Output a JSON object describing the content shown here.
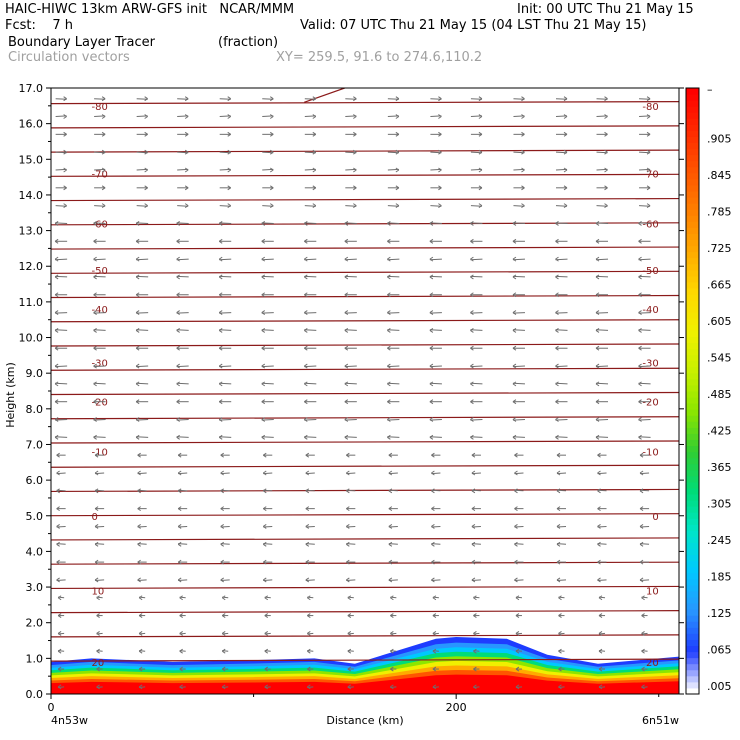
{
  "header": {
    "line1_left": "HAIC-HIWC 13km ARW-GFS init   NCAR/MMM",
    "line1_right": "Init: 00 UTC Thu 21 May 15",
    "line2_left": "Fcst:    7 h",
    "line2_right": "Valid: 07 UTC Thu 21 May 15 (04 LST Thu 21 May 15)",
    "line3_field": "Boundary Layer Tracer",
    "line3_units": "(fraction)",
    "line4_field": "Circulation vectors",
    "line4_xy": "XY= 259.5, 91.6 to 274.6,110.2"
  },
  "chart_data": {
    "type": "heatmap",
    "xlabel": "Distance (km)",
    "ylabel": "Height (km)",
    "xlim": [
      0,
      310
    ],
    "ylim": [
      0,
      17
    ],
    "x_ticks": [
      {
        "value": 0,
        "label": "0"
      },
      {
        "value": 200,
        "label": "200"
      }
    ],
    "y_ticks": [
      "0.0",
      "1.0",
      "2.0",
      "3.0",
      "4.0",
      "5.0",
      "6.0",
      "7.0",
      "8.0",
      "9.0",
      "10.0",
      "11.0",
      "12.0",
      "13.0",
      "14.0",
      "15.0",
      "16.0",
      "17.0"
    ],
    "x_endpoints": {
      "left": "4n53w",
      "right": "6n51w"
    },
    "colorbar": {
      "labels": [
        ".005",
        ".065",
        ".125",
        ".185",
        ".245",
        ".305",
        ".365",
        ".425",
        ".485",
        ".545",
        ".605",
        ".665",
        ".725",
        ".785",
        ".845",
        ".905"
      ],
      "top_label": "–",
      "colors": [
        "#ffffff",
        "#1e3cff",
        "#2896ff",
        "#00c8ff",
        "#00e6c8",
        "#00dc78",
        "#32cd32",
        "#8ce600",
        "#c8f000",
        "#f0f000",
        "#ffd700",
        "#ffaa00",
        "#ff8000",
        "#ff5500",
        "#ff2a00",
        "#ff0000"
      ]
    },
    "isotherm_labels": [
      {
        "label": "-80",
        "height_km": 16.5
      },
      {
        "label": "-70",
        "height_km": 14.6
      },
      {
        "label": "-60",
        "height_km": 13.2
      },
      {
        "label": "-50",
        "height_km": 11.9
      },
      {
        "label": "-40",
        "height_km": 10.8
      },
      {
        "label": "-30",
        "height_km": 9.3
      },
      {
        "label": "-20",
        "height_km": 8.2
      },
      {
        "label": "-10",
        "height_km": 6.8
      },
      {
        "label": "0",
        "height_km": 5.0
      },
      {
        "label": "10",
        "height_km": 2.9
      },
      {
        "label": "20",
        "height_km": 0.9
      }
    ],
    "boundary_layer_top_km": [
      [
        0,
        0.9
      ],
      [
        20,
        1.0
      ],
      [
        60,
        0.9
      ],
      [
        100,
        0.95
      ],
      [
        130,
        1.0
      ],
      [
        150,
        0.85
      ],
      [
        170,
        1.2
      ],
      [
        190,
        1.55
      ],
      [
        200,
        1.6
      ],
      [
        225,
        1.55
      ],
      [
        245,
        1.1
      ],
      [
        270,
        0.85
      ],
      [
        310,
        1.05
      ]
    ],
    "vector_columns_km": [
      5,
      24,
      45,
      65,
      86,
      107,
      128,
      148,
      169,
      190,
      210,
      231,
      252,
      272,
      293
    ]
  }
}
